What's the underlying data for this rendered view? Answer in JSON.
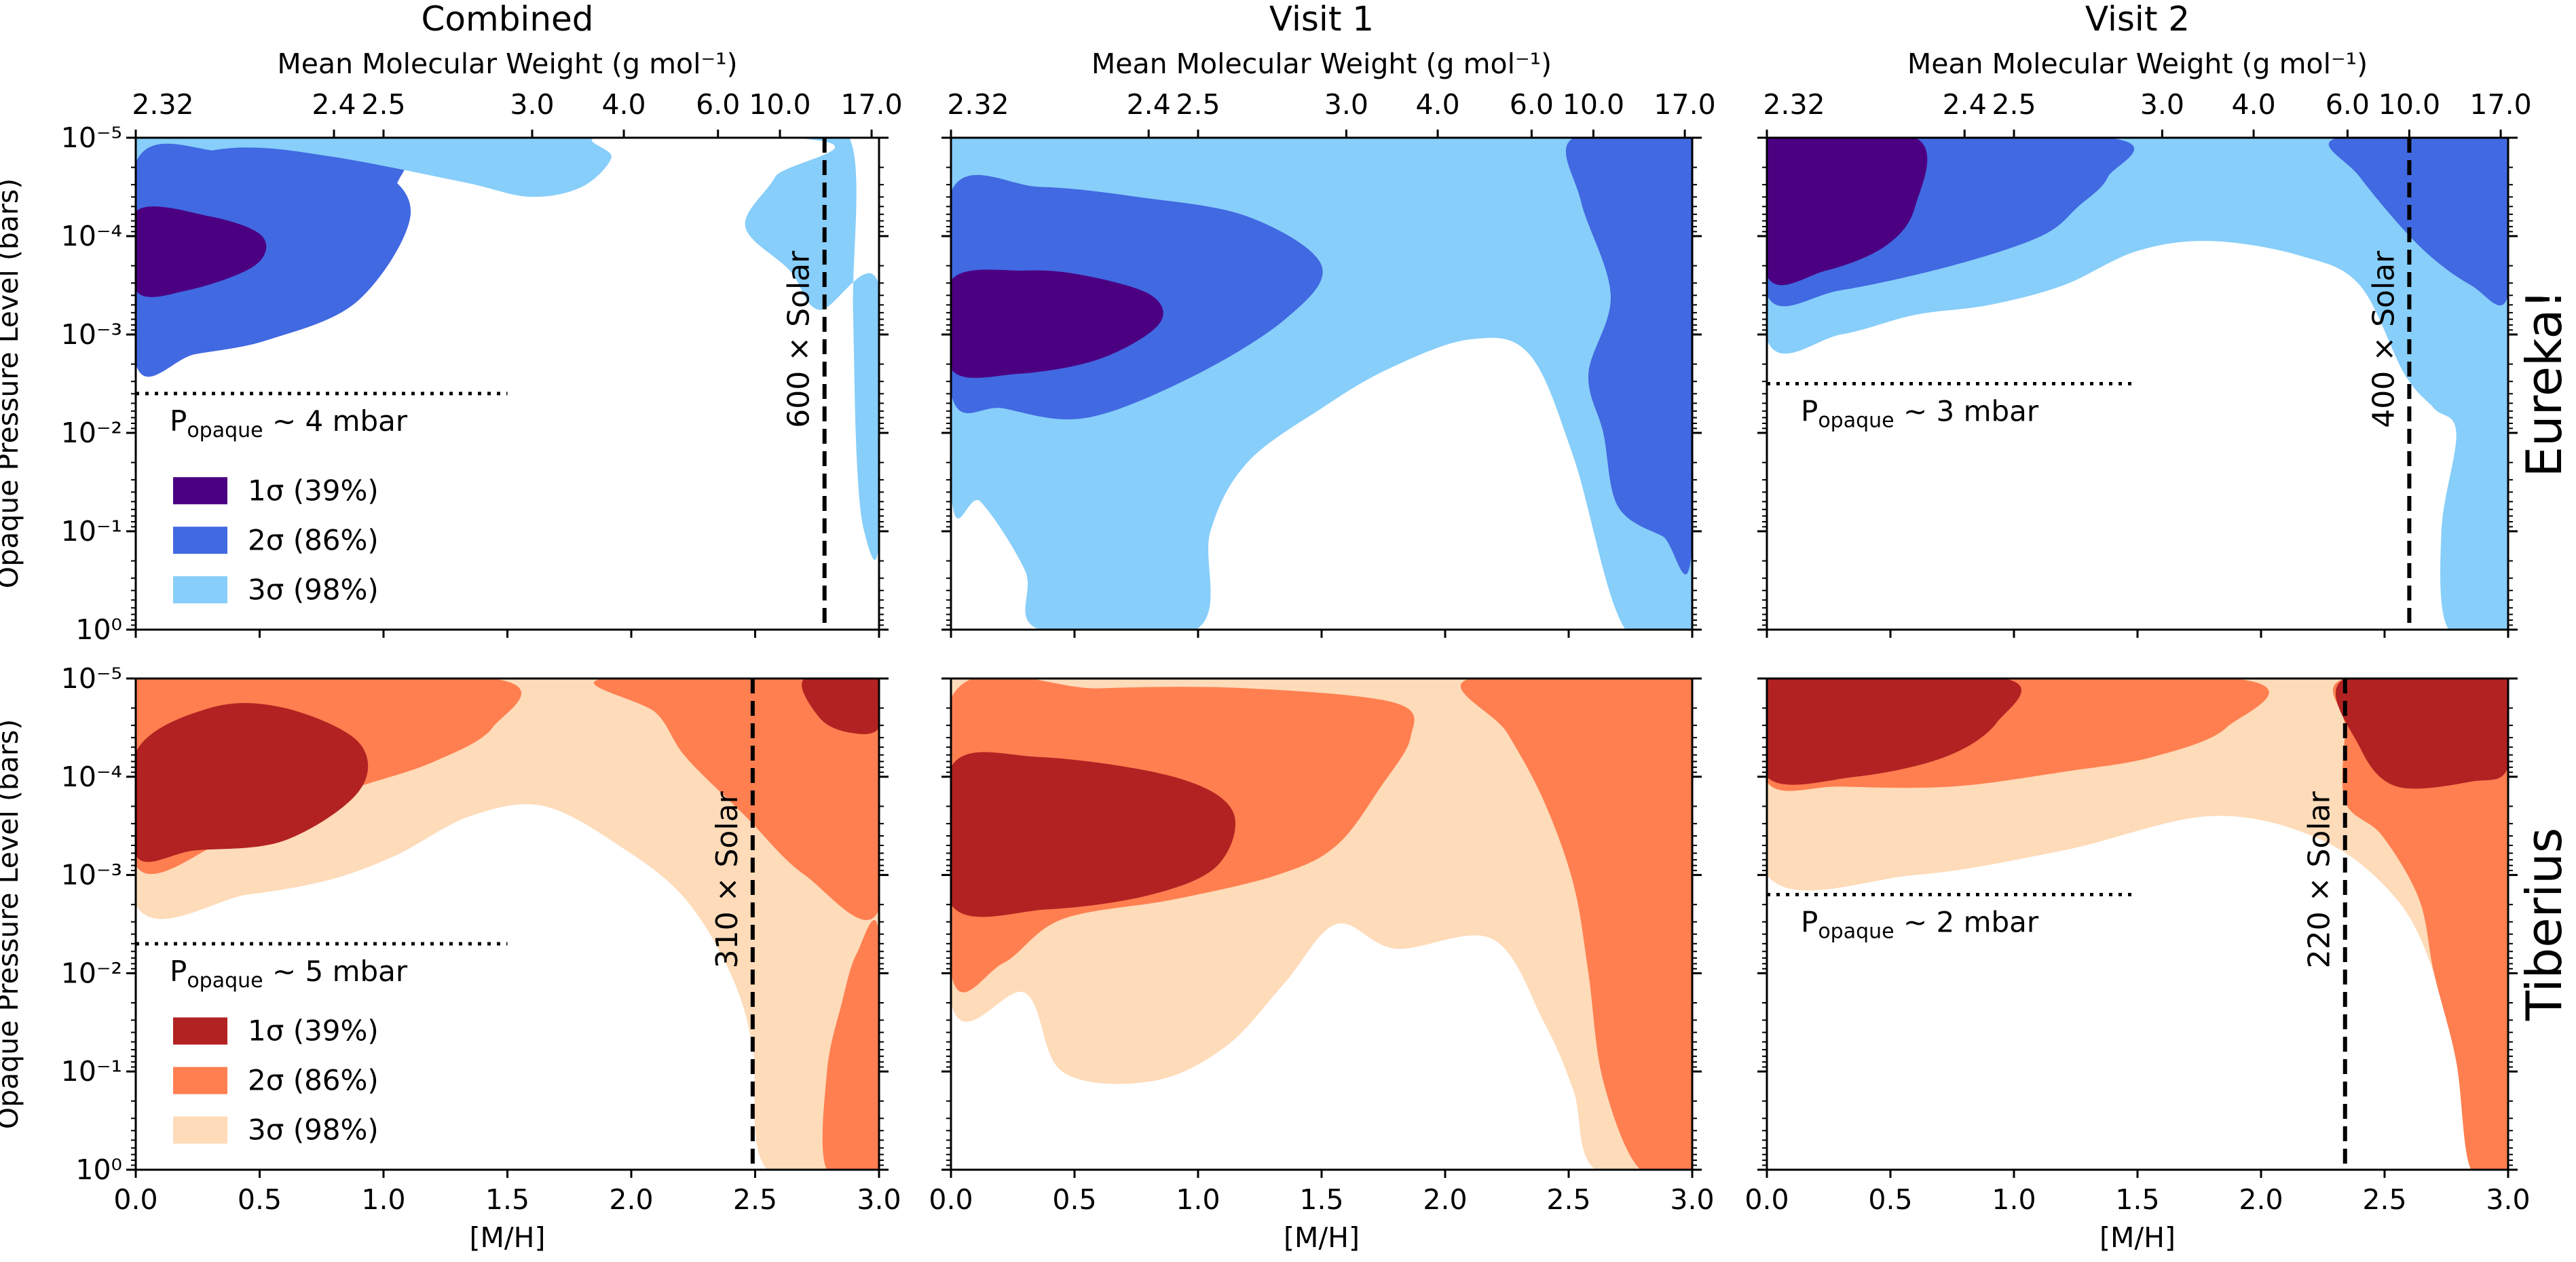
{
  "chart_data": {
    "type": "contour",
    "columns": [
      "Combined",
      "Visit 1",
      "Visit 2"
    ],
    "rows": [
      "Eureka!",
      "Tiberius"
    ],
    "xlabel_bottom": "[M/H]",
    "xlabel_top": "Mean Molecular Weight (g mol⁻¹)",
    "ylabel": "Opaque Pressure Level (bars)",
    "xlim": [
      0.0,
      3.0
    ],
    "ylim_log10_bars": [
      -5,
      0
    ],
    "x_ticks": [
      "0.0",
      "0.5",
      "1.0",
      "1.5",
      "2.0",
      "2.5",
      "3.0"
    ],
    "x_tick_values": [
      0.0,
      0.5,
      1.0,
      1.5,
      2.0,
      2.5,
      3.0
    ],
    "y_ticks": [
      "10⁻⁵",
      "10⁻⁴",
      "10⁻³",
      "10⁻²",
      "10⁻¹",
      "10⁰"
    ],
    "y_tick_exponents": [
      -5,
      -4,
      -3,
      -2,
      -1,
      0
    ],
    "top_ticks": [
      "2.32",
      "2.4",
      "2.5",
      "3.0",
      "4.0",
      "6.0",
      "10.0",
      "17.0"
    ],
    "top_tick_mh": [
      0.0,
      0.8,
      1.0,
      1.6,
      1.97,
      2.35,
      2.6,
      2.97
    ],
    "legend": [
      {
        "level": "1σ (39%)"
      },
      {
        "level": "2σ (86%)"
      },
      {
        "level": "3σ (98%)"
      }
    ],
    "colors": {
      "Eureka!": [
        "#4b0082",
        "#4169e1",
        "#87cefa"
      ],
      "Tiberius": [
        "#b22222",
        "#ff7f50",
        "#fedbb9"
      ],
      "label_Eureka!": "#87b3e0",
      "label_Tiberius": "#f0826c"
    },
    "panels": [
      {
        "row": "Eureka!",
        "col": "Combined",
        "metallicity_line": {
          "mh": 2.78,
          "label": "600 × Solar"
        },
        "opaque": {
          "log10_bars": -2.4,
          "label": "P",
          "sub": "opaque",
          "value": " ~ 4 mbar"
        },
        "legend": true
      },
      {
        "row": "Eureka!",
        "col": "Visit 1"
      },
      {
        "row": "Eureka!",
        "col": "Visit 2",
        "metallicity_line": {
          "mh": 2.6,
          "label": "400 × Solar"
        },
        "opaque": {
          "log10_bars": -2.5,
          "label": "P",
          "sub": "opaque",
          "value": " ~ 3 mbar"
        }
      },
      {
        "row": "Tiberius",
        "col": "Combined",
        "metallicity_line": {
          "mh": 2.49,
          "label": "310 × Solar"
        },
        "opaque": {
          "log10_bars": -2.3,
          "label": "P",
          "sub": "opaque",
          "value": " ~ 5 mbar"
        },
        "legend": true
      },
      {
        "row": "Tiberius",
        "col": "Visit 1"
      },
      {
        "row": "Tiberius",
        "col": "Visit 2",
        "metallicity_line": {
          "mh": 2.34,
          "label": "220 × Solar"
        },
        "opaque": {
          "log10_bars": -2.8,
          "label": "P",
          "sub": "opaque",
          "value": " ~ 2 mbar"
        }
      }
    ]
  }
}
